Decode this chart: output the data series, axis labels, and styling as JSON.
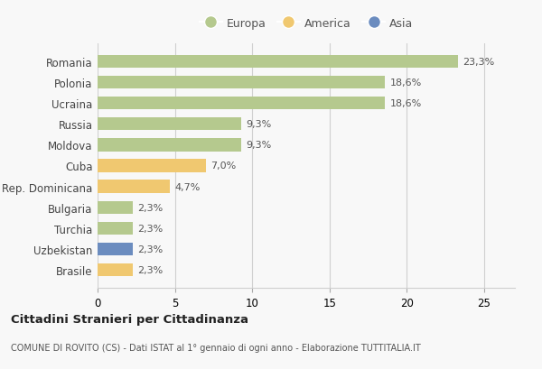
{
  "categories": [
    "Romania",
    "Polonia",
    "Ucraina",
    "Russia",
    "Moldova",
    "Cuba",
    "Rep. Dominicana",
    "Bulgaria",
    "Turchia",
    "Uzbekistan",
    "Brasile"
  ],
  "values": [
    23.3,
    18.6,
    18.6,
    9.3,
    9.3,
    7.0,
    4.7,
    2.3,
    2.3,
    2.3,
    2.3
  ],
  "labels": [
    "23,3%",
    "18,6%",
    "18,6%",
    "9,3%",
    "9,3%",
    "7,0%",
    "4,7%",
    "2,3%",
    "2,3%",
    "2,3%",
    "2,3%"
  ],
  "continents": [
    "Europa",
    "Europa",
    "Europa",
    "Europa",
    "Europa",
    "America",
    "America",
    "Europa",
    "Europa",
    "Asia",
    "America"
  ],
  "colors": {
    "Europa": "#b5c98e",
    "America": "#f0c870",
    "Asia": "#6b8cbf"
  },
  "xlim": [
    0,
    27
  ],
  "xticks": [
    0,
    5,
    10,
    15,
    20,
    25
  ],
  "title": "Cittadini Stranieri per Cittadinanza",
  "subtitle": "COMUNE DI ROVITO (CS) - Dati ISTAT al 1° gennaio di ogni anno - Elaborazione TUTTITALIA.IT",
  "background_color": "#f8f8f8",
  "grid_color": "#d0d0d0",
  "legend_order": [
    "Europa",
    "America",
    "Asia"
  ]
}
